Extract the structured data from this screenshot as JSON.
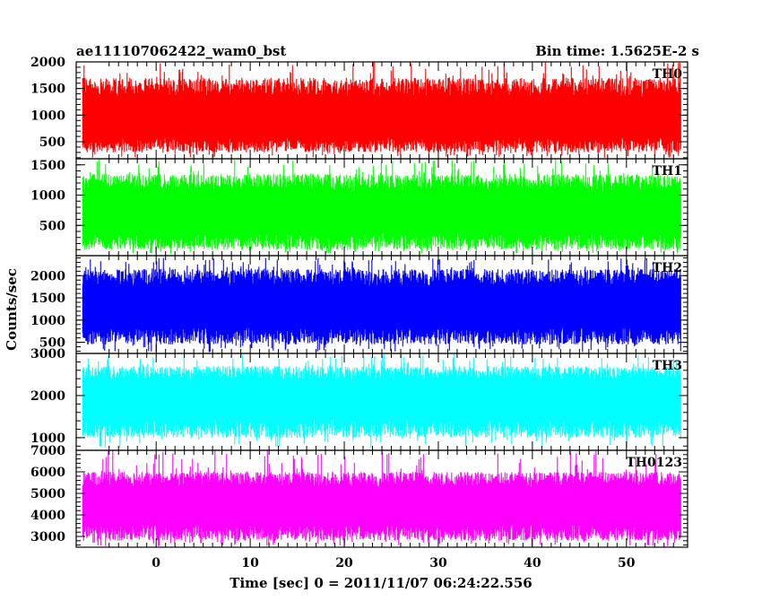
{
  "chart_data": {
    "type": "line",
    "title_left": "ae111107062422_wam0_bst",
    "title_right": "Bin time: 1.5625E-2 s",
    "xlabel": "Time [sec] 0 = 2011/11/07 06:24:22.556",
    "ylabel": "Counts/sec",
    "xlim": [
      -8.5,
      56.5
    ],
    "data_x_range": [
      -7.8,
      55.8
    ],
    "bin_time_s": 0.015625,
    "x_ticks": [
      0,
      10,
      20,
      30,
      40,
      50
    ],
    "grid": false,
    "panels": [
      {
        "name": "TH0",
        "color": "#ff0000",
        "ylim": [
          180,
          2000
        ],
        "y_ticks": [
          500,
          1000,
          1500,
          2000
        ],
        "mean": 920,
        "low_envelope": 300,
        "high_envelope": 1700,
        "max": 2000,
        "min": 200
      },
      {
        "name": "TH1",
        "color": "#00ff00",
        "ylim": [
          0,
          1600
        ],
        "y_ticks": [
          500,
          1000,
          1500
        ],
        "mean": 700,
        "low_envelope": 100,
        "high_envelope": 1350,
        "max": 1600,
        "min": 30
      },
      {
        "name": "TH2",
        "color": "#0000ff",
        "ylim": [
          250,
          2450
        ],
        "y_ticks": [
          500,
          1000,
          1500,
          2000
        ],
        "mean": 1300,
        "low_envelope": 450,
        "high_envelope": 2150,
        "max": 2400,
        "min": 280
      },
      {
        "name": "TH3",
        "color": "#00ffff",
        "ylim": [
          700,
          3000
        ],
        "y_ticks": [
          1000,
          2000,
          3000
        ],
        "mean": 1950,
        "low_envelope": 1000,
        "high_envelope": 2700,
        "max": 3000,
        "min": 750
      },
      {
        "name": "TH0123",
        "color": "#ff00ff",
        "ylim": [
          2500,
          7000
        ],
        "y_ticks": [
          3000,
          4000,
          5000,
          6000,
          7000
        ],
        "mean": 4450,
        "low_envelope": 2800,
        "high_envelope": 6000,
        "max": 7000,
        "min": 2550
      }
    ]
  }
}
